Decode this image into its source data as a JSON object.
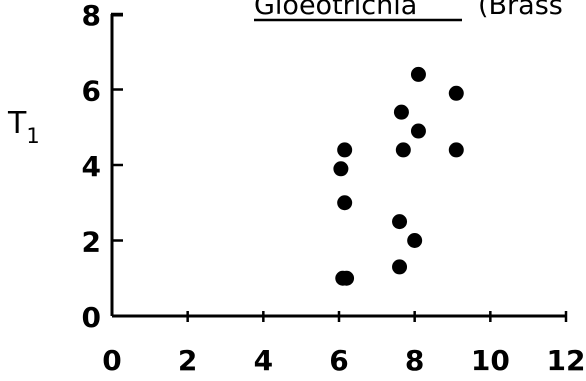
{
  "chart_data": {
    "type": "scatter",
    "title": "Gloeotrichia",
    "title_suffix": "(Brass",
    "ylabel_main": "T",
    "ylabel_sub": "1",
    "xlabel": "",
    "xlim": [
      0,
      12
    ],
    "ylim": [
      0,
      8
    ],
    "x_ticks": [
      "0",
      "2",
      "4",
      "6",
      "8",
      "10",
      "12"
    ],
    "y_ticks": [
      "0",
      "2",
      "4",
      "6",
      "8"
    ],
    "grid": false,
    "color": "#000000",
    "series": [
      {
        "points": [
          {
            "x": 6.1,
            "y": 1.0
          },
          {
            "x": 6.2,
            "y": 1.0
          },
          {
            "x": 6.15,
            "y": 3.0
          },
          {
            "x": 6.05,
            "y": 3.9
          },
          {
            "x": 6.15,
            "y": 4.4
          },
          {
            "x": 7.6,
            "y": 1.3
          },
          {
            "x": 8.0,
            "y": 2.0
          },
          {
            "x": 7.6,
            "y": 2.5
          },
          {
            "x": 7.7,
            "y": 4.4
          },
          {
            "x": 7.65,
            "y": 5.4
          },
          {
            "x": 8.1,
            "y": 4.9
          },
          {
            "x": 8.1,
            "y": 6.4
          },
          {
            "x": 9.1,
            "y": 4.4
          },
          {
            "x": 9.1,
            "y": 5.9
          }
        ]
      }
    ]
  }
}
